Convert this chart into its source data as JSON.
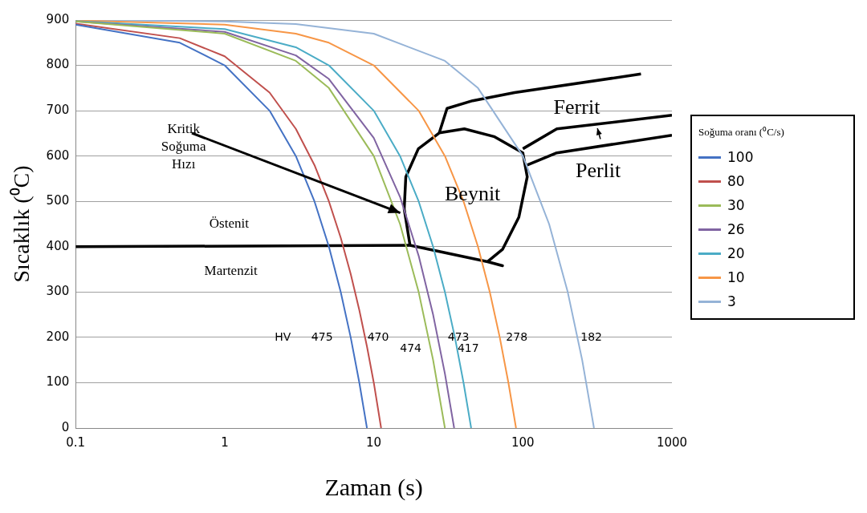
{
  "chart_data": {
    "type": "line",
    "xlabel": "Zaman (s)",
    "ylabel": "Sıcaklık (⁰C)",
    "legend_title": "Soğuma oranı (⁰C/s)",
    "legend": "right",
    "log": "x",
    "grid": "y",
    "marker": "none",
    "line_style": "solid",
    "xlim": [
      0.1,
      1000
    ],
    "xticks": [
      0.1,
      1,
      10,
      100,
      1000
    ],
    "ylim": [
      0,
      900
    ],
    "yticks": [
      0,
      100,
      200,
      300,
      400,
      500,
      600,
      700,
      800,
      900
    ],
    "series": [
      {
        "name": "100",
        "color": "#4472c4",
        "x": [
          0.1,
          0.5,
          1,
          2,
          3,
          4,
          5,
          6,
          7,
          8,
          9
        ],
        "values": [
          890,
          850,
          800,
          700,
          600,
          500,
          400,
          300,
          200,
          100,
          0
        ]
      },
      {
        "name": "80",
        "color": "#c0504d",
        "x": [
          0.1,
          0.5,
          1,
          2,
          3,
          4,
          5,
          6,
          7,
          8,
          9,
          10,
          11.2
        ],
        "values": [
          892,
          860,
          820,
          740,
          660,
          580,
          500,
          420,
          340,
          260,
          180,
          100,
          0
        ]
      },
      {
        "name": "30",
        "color": "#9bbb59",
        "x": [
          0.1,
          1,
          3,
          5,
          10,
          15,
          20,
          25,
          30
        ],
        "values": [
          897,
          870,
          810,
          750,
          600,
          450,
          300,
          150,
          0
        ]
      },
      {
        "name": "26",
        "color": "#8064a2",
        "x": [
          0.1,
          1,
          3,
          5,
          10,
          15,
          20,
          25,
          30,
          34.6
        ],
        "values": [
          897,
          874,
          822,
          770,
          640,
          510,
          380,
          250,
          120,
          0
        ]
      },
      {
        "name": "20",
        "color": "#4bacc6",
        "x": [
          0.1,
          1,
          3,
          5,
          10,
          15,
          20,
          25,
          30,
          35,
          40,
          45
        ],
        "values": [
          898,
          880,
          840,
          800,
          700,
          600,
          500,
          400,
          300,
          200,
          100,
          0
        ]
      },
      {
        "name": "10",
        "color": "#f79646",
        "x": [
          0.1,
          1,
          3,
          5,
          10,
          20,
          30,
          40,
          50,
          60,
          70,
          80,
          90
        ],
        "values": [
          899,
          890,
          870,
          850,
          800,
          700,
          600,
          500,
          400,
          300,
          200,
          100,
          0
        ]
      },
      {
        "name": "3",
        "color": "#95b3d7",
        "x": [
          0.1,
          1,
          3,
          10,
          30,
          50,
          100,
          150,
          200,
          250,
          300
        ],
        "values": [
          900,
          897,
          891,
          870,
          810,
          750,
          600,
          450,
          300,
          150,
          0
        ]
      },
      {
        "color": "#000000",
        "x": [
          0.1,
          17.5,
          58,
          73,
          58,
          17.5,
          16,
          16.4,
          19.9,
          27.5,
          40.5,
          64,
          100,
          107,
          94,
          73,
          58
        ],
        "values": [
          400,
          403,
          367,
          358,
          367,
          403,
          483,
          554,
          616,
          651,
          660,
          643,
          607,
          554,
          465,
          394,
          367
        ]
      },
      {
        "color": "#000000",
        "x": [
          27.5,
          31,
          46,
          88,
          620
        ],
        "values": [
          651,
          705,
          722,
          740,
          781
        ]
      },
      {
        "color": "#000000",
        "x": [
          100,
          169,
          1000
        ],
        "values": [
          616,
          660,
          690
        ]
      },
      {
        "color": "#000000",
        "x": [
          107,
          169,
          1000
        ],
        "values": [
          580,
          607,
          646
        ]
      }
    ],
    "annotations": [
      "HV",
      "475",
      "470",
      "474",
      "473",
      "417",
      "278",
      "182",
      {
        "text": "Kritik\nSoğuma\nHızı",
        "x": 15,
        "y": 474
      },
      "Östenit",
      "Martenzit",
      "Beynit",
      "Ferrit",
      "Perlit"
    ]
  }
}
